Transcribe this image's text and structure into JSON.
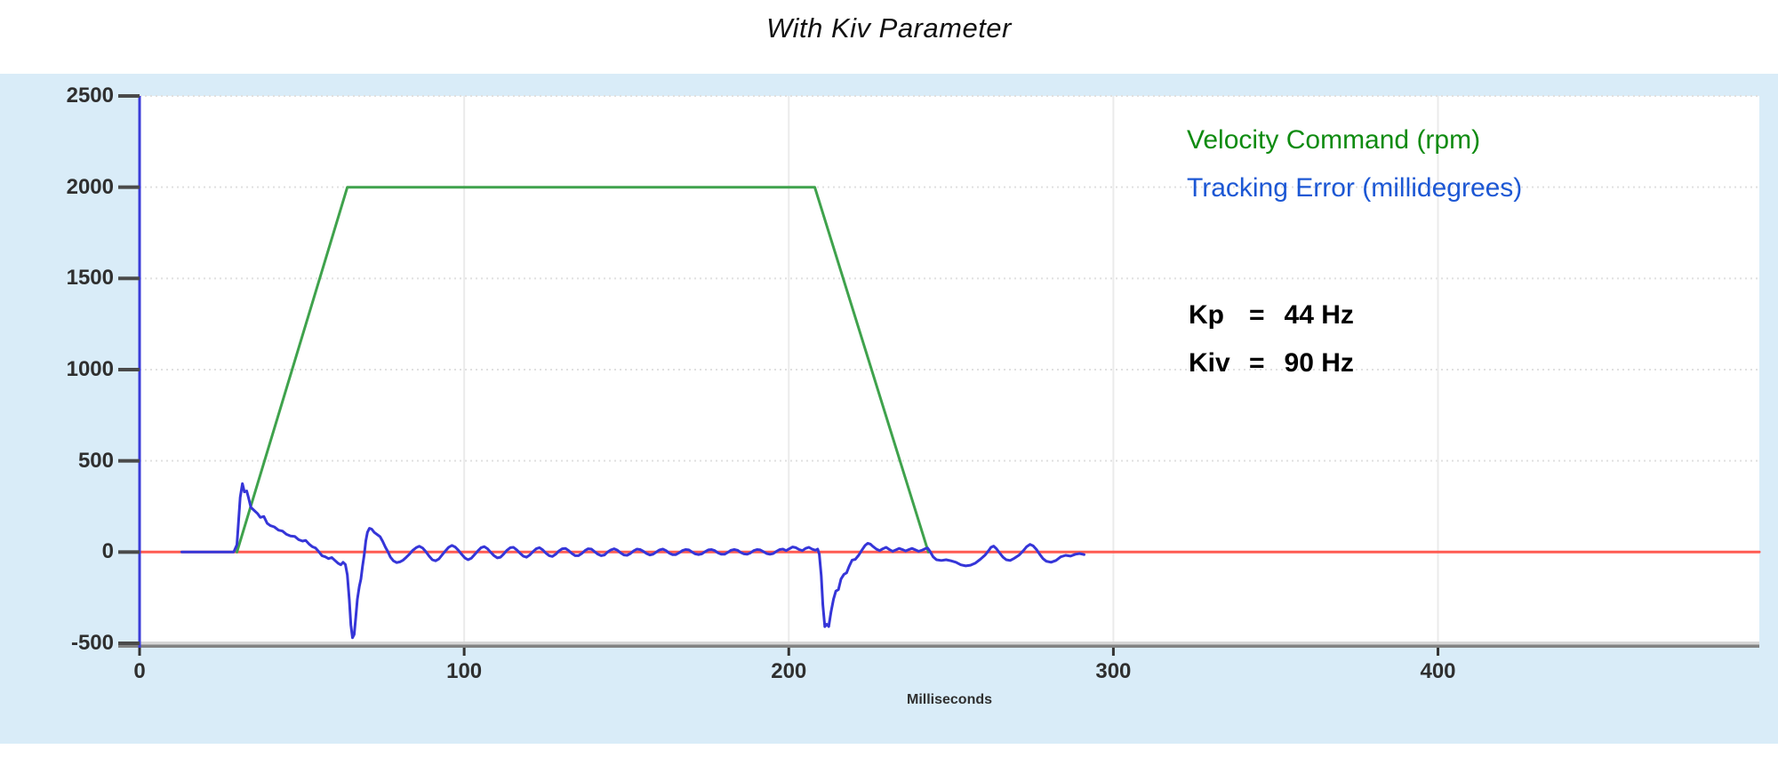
{
  "title": "With Kiv Parameter",
  "legend": {
    "items": [
      {
        "label": "Velocity Command (rpm)",
        "color": "#0e8b10"
      },
      {
        "label": "Tracking Error (millidegrees)",
        "color": "#1c57d4"
      }
    ]
  },
  "params": [
    {
      "name": "Kp",
      "eq": "=",
      "value": "44 Hz"
    },
    {
      "name": "Kiv",
      "eq": "=",
      "value": "90 Hz"
    }
  ],
  "colors": {
    "panel_bg": "#d9ecf8",
    "plot_bg": "#ffffff",
    "grid_horizontal": "#e0e0e0",
    "grid_vertical": "#ebebeb",
    "y_axis": "#3b3bd8",
    "x_axis_light": "#d6d6d6",
    "x_axis_dark": "#828282",
    "tick": "#4a4a4a",
    "tick_label": "#2f2f2f",
    "zero_line": "#ff5b52",
    "velocity_line": "#3fa24c",
    "error_line": "#3535d8"
  },
  "chart_data": {
    "type": "line",
    "title": "With Kiv Parameter",
    "xlabel": "Milliseconds",
    "ylabel": "",
    "xlim": [
      0,
      499
    ],
    "ylim": [
      -500,
      2500
    ],
    "x_ticks": [
      0,
      100,
      200,
      300,
      400
    ],
    "y_ticks": [
      2500,
      2000,
      1500,
      1000,
      500,
      0,
      -500
    ],
    "grid": true,
    "legend_position": "top-right",
    "annotations": [
      "Kp = 44 Hz",
      "Kiv = 90 Hz"
    ],
    "series": [
      {
        "name": "Zero reference",
        "color": "#ff5b52",
        "width": 3,
        "points": [
          [
            0,
            0
          ],
          [
            499,
            0
          ]
        ]
      },
      {
        "name": "Velocity Command (rpm)",
        "color": "#3fa24c",
        "width": 3,
        "points": [
          [
            30,
            0
          ],
          [
            64,
            2000
          ],
          [
            208,
            2000
          ],
          [
            243,
            0
          ]
        ]
      },
      {
        "name": "Tracking Error (millidegrees)",
        "color": "#3535d8",
        "width": 3,
        "points": [
          [
            13,
            0
          ],
          [
            29,
            0
          ],
          [
            30,
            40
          ],
          [
            31,
            300
          ],
          [
            31.7,
            375
          ],
          [
            32.3,
            330
          ],
          [
            33,
            335
          ],
          [
            33.6,
            295
          ],
          [
            34.3,
            245
          ],
          [
            35.3,
            228
          ],
          [
            36.3,
            212
          ],
          [
            37.2,
            190
          ],
          [
            38.3,
            195
          ],
          [
            39.3,
            158
          ],
          [
            40.3,
            145
          ],
          [
            41.5,
            138
          ],
          [
            42.8,
            120
          ],
          [
            44,
            115
          ],
          [
            45.2,
            98
          ],
          [
            46.5,
            88
          ],
          [
            47.8,
            86
          ],
          [
            49,
            68
          ],
          [
            50.2,
            60
          ],
          [
            51.2,
            64
          ],
          [
            52.2,
            44
          ],
          [
            53.2,
            30
          ],
          [
            54.2,
            22
          ],
          [
            55.2,
            2
          ],
          [
            56.2,
            -20
          ],
          [
            57.2,
            -26
          ],
          [
            58.2,
            -36
          ],
          [
            59.2,
            -30
          ],
          [
            60.2,
            -46
          ],
          [
            61.2,
            -62
          ],
          [
            62,
            -70
          ],
          [
            62.7,
            -56
          ],
          [
            63.4,
            -68
          ],
          [
            64,
            -125
          ],
          [
            64.6,
            -260
          ],
          [
            65.1,
            -400
          ],
          [
            65.6,
            -470
          ],
          [
            66.1,
            -452
          ],
          [
            66.6,
            -358
          ],
          [
            67.1,
            -258
          ],
          [
            67.7,
            -188
          ],
          [
            68.2,
            -148
          ],
          [
            68.7,
            -78
          ],
          [
            69.2,
            -15
          ],
          [
            69.7,
            62
          ],
          [
            70.2,
            108
          ],
          [
            70.8,
            130
          ],
          [
            71.5,
            126
          ],
          [
            72.3,
            108
          ],
          [
            73.2,
            96
          ],
          [
            74.1,
            84
          ],
          [
            74.9,
            58
          ],
          [
            75.7,
            28
          ],
          [
            76.5,
            2
          ],
          [
            77.3,
            -28
          ],
          [
            78.2,
            -48
          ],
          [
            79.2,
            -58
          ],
          [
            80.2,
            -54
          ],
          [
            81.2,
            -44
          ],
          [
            82.2,
            -28
          ],
          [
            83.2,
            -10
          ],
          [
            84.2,
            10
          ],
          [
            85.2,
            24
          ],
          [
            86.2,
            32
          ],
          [
            87.2,
            22
          ],
          [
            88.2,
            2
          ],
          [
            89.2,
            -22
          ],
          [
            90.2,
            -42
          ],
          [
            91.2,
            -48
          ],
          [
            92.2,
            -38
          ],
          [
            93.2,
            -16
          ],
          [
            94.2,
            6
          ],
          [
            95.2,
            26
          ],
          [
            96.2,
            36
          ],
          [
            97.2,
            28
          ],
          [
            98.2,
            10
          ],
          [
            99.2,
            -12
          ],
          [
            100.2,
            -32
          ],
          [
            101.2,
            -42
          ],
          [
            102.2,
            -34
          ],
          [
            103.2,
            -14
          ],
          [
            104.2,
            6
          ],
          [
            105.2,
            24
          ],
          [
            106.2,
            30
          ],
          [
            107.2,
            18
          ],
          [
            108.2,
            -2
          ],
          [
            109.2,
            -20
          ],
          [
            110.2,
            -32
          ],
          [
            111.2,
            -28
          ],
          [
            112.2,
            -10
          ],
          [
            113.2,
            10
          ],
          [
            114.2,
            24
          ],
          [
            115.2,
            26
          ],
          [
            116.2,
            12
          ],
          [
            117.2,
            -6
          ],
          [
            118.2,
            -22
          ],
          [
            119.2,
            -28
          ],
          [
            120.2,
            -16
          ],
          [
            121.2,
            2
          ],
          [
            122.2,
            18
          ],
          [
            123.2,
            24
          ],
          [
            124.2,
            12
          ],
          [
            125.2,
            -6
          ],
          [
            126.2,
            -20
          ],
          [
            127.2,
            -24
          ],
          [
            128.2,
            -12
          ],
          [
            129.2,
            6
          ],
          [
            130.2,
            18
          ],
          [
            131.2,
            20
          ],
          [
            132.2,
            8
          ],
          [
            133.2,
            -8
          ],
          [
            134.2,
            -20
          ],
          [
            135.2,
            -20
          ],
          [
            136.2,
            -8
          ],
          [
            137.2,
            8
          ],
          [
            138.2,
            18
          ],
          [
            139.2,
            16
          ],
          [
            140.2,
            2
          ],
          [
            141.2,
            -12
          ],
          [
            142.2,
            -20
          ],
          [
            143.2,
            -16
          ],
          [
            144.2,
            0
          ],
          [
            145.2,
            12
          ],
          [
            146.2,
            18
          ],
          [
            147.2,
            10
          ],
          [
            148.2,
            -4
          ],
          [
            149.2,
            -16
          ],
          [
            150.2,
            -18
          ],
          [
            151.2,
            -8
          ],
          [
            152.2,
            6
          ],
          [
            153.2,
            16
          ],
          [
            154.2,
            14
          ],
          [
            155.2,
            4
          ],
          [
            156.2,
            -8
          ],
          [
            157.2,
            -16
          ],
          [
            158.2,
            -12
          ],
          [
            159.2,
            0
          ],
          [
            160.2,
            12
          ],
          [
            161.2,
            16
          ],
          [
            162.2,
            8
          ],
          [
            163.2,
            -6
          ],
          [
            164.2,
            -14
          ],
          [
            165.2,
            -14
          ],
          [
            166.2,
            -4
          ],
          [
            167.2,
            8
          ],
          [
            168.2,
            14
          ],
          [
            169.2,
            12
          ],
          [
            170.2,
            0
          ],
          [
            171.2,
            -10
          ],
          [
            172.2,
            -14
          ],
          [
            173.2,
            -10
          ],
          [
            174.2,
            2
          ],
          [
            175.2,
            12
          ],
          [
            176.2,
            14
          ],
          [
            177.2,
            8
          ],
          [
            178.2,
            -4
          ],
          [
            179.2,
            -12
          ],
          [
            180.2,
            -12
          ],
          [
            181.2,
            -2
          ],
          [
            182.2,
            10
          ],
          [
            183.2,
            14
          ],
          [
            184.2,
            10
          ],
          [
            185.2,
            -2
          ],
          [
            186.2,
            -10
          ],
          [
            187.2,
            -12
          ],
          [
            188.2,
            -4
          ],
          [
            189.2,
            8
          ],
          [
            190.2,
            14
          ],
          [
            191.2,
            12
          ],
          [
            192.2,
            2
          ],
          [
            193.2,
            -8
          ],
          [
            194.2,
            -12
          ],
          [
            195.2,
            -8
          ],
          [
            196.2,
            4
          ],
          [
            197.2,
            14
          ],
          [
            198.2,
            16
          ],
          [
            199.2,
            8
          ],
          [
            200.2,
            18
          ],
          [
            201.2,
            28
          ],
          [
            202.2,
            24
          ],
          [
            203.2,
            14
          ],
          [
            204.2,
            8
          ],
          [
            205.2,
            20
          ],
          [
            206.2,
            26
          ],
          [
            207.2,
            16
          ],
          [
            208.2,
            10
          ],
          [
            208.9,
            16
          ],
          [
            209.4,
            -12
          ],
          [
            210,
            -130
          ],
          [
            210.5,
            -290
          ],
          [
            211.1,
            -409
          ],
          [
            211.7,
            -396
          ],
          [
            212.3,
            -408
          ],
          [
            213,
            -330
          ],
          [
            213.8,
            -258
          ],
          [
            214.5,
            -214
          ],
          [
            215.3,
            -206
          ],
          [
            216.1,
            -148
          ],
          [
            217,
            -122
          ],
          [
            217.8,
            -114
          ],
          [
            218.6,
            -78
          ],
          [
            219.5,
            -44
          ],
          [
            220.5,
            -40
          ],
          [
            221.5,
            -18
          ],
          [
            222.5,
            10
          ],
          [
            223.5,
            36
          ],
          [
            224.3,
            48
          ],
          [
            225.1,
            44
          ],
          [
            226,
            30
          ],
          [
            227,
            16
          ],
          [
            228,
            8
          ],
          [
            229,
            18
          ],
          [
            230,
            26
          ],
          [
            231,
            14
          ],
          [
            232,
            4
          ],
          [
            233,
            12
          ],
          [
            234,
            20
          ],
          [
            235,
            14
          ],
          [
            236,
            6
          ],
          [
            237,
            14
          ],
          [
            238,
            20
          ],
          [
            239,
            12
          ],
          [
            240,
            4
          ],
          [
            241,
            10
          ],
          [
            242,
            18
          ],
          [
            242.8,
            22
          ],
          [
            243.5,
            4
          ],
          [
            244.5,
            -26
          ],
          [
            245.5,
            -42
          ],
          [
            247,
            -46
          ],
          [
            248.5,
            -42
          ],
          [
            250,
            -48
          ],
          [
            251.5,
            -56
          ],
          [
            253,
            -70
          ],
          [
            254.5,
            -76
          ],
          [
            256,
            -72
          ],
          [
            257.5,
            -60
          ],
          [
            259,
            -40
          ],
          [
            260.5,
            -16
          ],
          [
            261.5,
            6
          ],
          [
            262.3,
            26
          ],
          [
            263.1,
            33
          ],
          [
            264,
            18
          ],
          [
            265,
            -6
          ],
          [
            266,
            -28
          ],
          [
            267,
            -42
          ],
          [
            268.2,
            -46
          ],
          [
            269.5,
            -34
          ],
          [
            271,
            -16
          ],
          [
            272.3,
            8
          ],
          [
            273.3,
            30
          ],
          [
            274.3,
            42
          ],
          [
            275.3,
            34
          ],
          [
            276.3,
            14
          ],
          [
            277.3,
            -12
          ],
          [
            278.3,
            -36
          ],
          [
            279.3,
            -50
          ],
          [
            280.8,
            -56
          ],
          [
            282.3,
            -46
          ],
          [
            283.8,
            -26
          ],
          [
            285.3,
            -18
          ],
          [
            286.8,
            -22
          ],
          [
            288.3,
            -12
          ],
          [
            289.6,
            -8
          ],
          [
            291,
            -14
          ]
        ]
      }
    ]
  }
}
